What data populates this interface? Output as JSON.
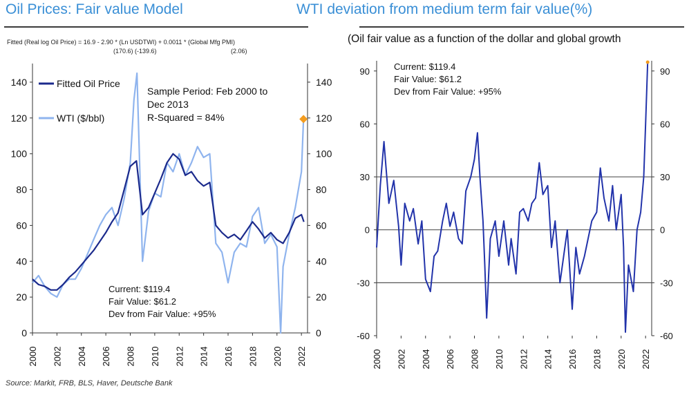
{
  "header": {
    "left_title": "Oil Prices: Fair value Model",
    "right_title": "WTI deviation from medium term fair value(%)"
  },
  "equation": {
    "line": "Fitted (Real log Oil Price) = 16.9 - 2.90 * (Ln USDTWI) + 0.0011 * (Global Mfg PMI)",
    "tstats_1": "(170.6) (-139.6)",
    "tstats_2": "(2.06)"
  },
  "right_subtitle": "(Oil fair value as a function of the dollar and global growth",
  "source": "Source: Markit, FRB, BLS, Haver, Deutsche Bank",
  "colors": {
    "fitted": "#1b2a8c",
    "wti": "#8fb4ee",
    "deviation": "#2233aa",
    "marker": "#f39c1f",
    "title": "#3a8fd6"
  },
  "chart_data": [
    {
      "type": "line",
      "x_range": [
        2000,
        2022.5
      ],
      "ylim": [
        0,
        150
      ],
      "yticks": [
        0,
        20,
        40,
        60,
        80,
        100,
        120,
        140
      ],
      "xticks": [
        "2000",
        "2002",
        "2004",
        "2006",
        "2008",
        "2010",
        "2012",
        "2014",
        "2016",
        "2018",
        "2020",
        "2022"
      ],
      "grid": false,
      "legend": [
        "Fitted Oil Price",
        "WTI ($/bbl)"
      ],
      "legend_position": "top-left",
      "annotations": {
        "sample": [
          "Sample Period: Feb 2000 to",
          "Dec 2013",
          "R-Squared = 84%"
        ],
        "stats": [
          "Current: $119.4",
          "Fair Value: $61.2",
          "Dev from Fair Value: +95%"
        ]
      },
      "highlight_point": {
        "x": 2022.17,
        "y": 119.4
      },
      "series": [
        {
          "name": "Fitted Oil Price",
          "x": [
            2000,
            2000.5,
            2001,
            2001.5,
            2002,
            2002.5,
            2003,
            2003.5,
            2004,
            2004.5,
            2005,
            2005.5,
            2006,
            2006.5,
            2007,
            2007.5,
            2008,
            2008.5,
            2009,
            2009.5,
            2010,
            2010.5,
            2011,
            2011.5,
            2012,
            2012.5,
            2013,
            2013.5,
            2014,
            2014.5,
            2015,
            2015.5,
            2016,
            2016.5,
            2017,
            2017.5,
            2018,
            2018.5,
            2019,
            2019.5,
            2020,
            2020.5,
            2021,
            2021.5,
            2022,
            2022.2
          ],
          "values": [
            30,
            27,
            26,
            24,
            24,
            27,
            31,
            34,
            38,
            42,
            46,
            51,
            56,
            62,
            67,
            80,
            93,
            96,
            66,
            70,
            78,
            86,
            95,
            100,
            97,
            88,
            90,
            85,
            82,
            84,
            60,
            56,
            53,
            55,
            52,
            57,
            62,
            58,
            53,
            56,
            52,
            50,
            56,
            64,
            66,
            62
          ]
        },
        {
          "name": "WTI ($/bbl)",
          "x": [
            2000,
            2000.5,
            2001,
            2001.5,
            2002,
            2002.5,
            2003,
            2003.5,
            2004,
            2004.5,
            2005,
            2005.5,
            2006,
            2006.5,
            2007,
            2007.5,
            2008,
            2008.3,
            2008.55,
            2009,
            2009.5,
            2010,
            2010.5,
            2011,
            2011.5,
            2012,
            2012.5,
            2013,
            2013.5,
            2014,
            2014.5,
            2015,
            2015.5,
            2016,
            2016.5,
            2017,
            2017.5,
            2018,
            2018.5,
            2019,
            2019.5,
            2020,
            2020.3,
            2020.5,
            2021,
            2021.5,
            2022,
            2022.17
          ],
          "values": [
            28,
            32,
            26,
            22,
            20,
            27,
            30,
            30,
            36,
            44,
            52,
            60,
            66,
            70,
            60,
            75,
            95,
            130,
            145,
            40,
            68,
            78,
            76,
            95,
            90,
            100,
            88,
            95,
            104,
            98,
            100,
            50,
            45,
            28,
            45,
            50,
            48,
            65,
            70,
            50,
            55,
            48,
            0,
            37,
            55,
            70,
            90,
            119.4
          ]
        }
      ]
    },
    {
      "type": "line",
      "x_range": [
        2000,
        2022.5
      ],
      "ylim": [
        -60,
        95
      ],
      "yticks": [
        -60,
        -30,
        0,
        30,
        60,
        90
      ],
      "reference_lines": [
        -30,
        0,
        30
      ],
      "xticks": [
        "2000",
        "2002",
        "2004",
        "2006",
        "2008",
        "2010",
        "2012",
        "2014",
        "2016",
        "2018",
        "2020",
        "2022"
      ],
      "grid": false,
      "annotations": [
        "Current: $119.4",
        "Fair Value: $61.2",
        "Dev from Fair Value: +95%"
      ],
      "highlight_point": {
        "x": 2022.17,
        "y": 95
      },
      "series": [
        {
          "x": [
            2000,
            2000.3,
            2000.6,
            2001,
            2001.4,
            2001.8,
            2002,
            2002.3,
            2002.7,
            2003,
            2003.4,
            2003.7,
            2004,
            2004.4,
            2004.7,
            2005,
            2005.4,
            2005.7,
            2006,
            2006.3,
            2006.7,
            2007,
            2007.3,
            2007.7,
            2008,
            2008.25,
            2008.45,
            2008.7,
            2008.85,
            2009,
            2009.3,
            2009.7,
            2010,
            2010.4,
            2010.8,
            2011,
            2011.4,
            2011.7,
            2012,
            2012.4,
            2012.7,
            2013,
            2013.3,
            2013.6,
            2014,
            2014.3,
            2014.6,
            2015,
            2015.3,
            2015.6,
            2016,
            2016.3,
            2016.6,
            2017,
            2017.3,
            2017.6,
            2018,
            2018.3,
            2018.6,
            2019,
            2019.3,
            2019.6,
            2020,
            2020.2,
            2020.35,
            2020.6,
            2021,
            2021.3,
            2021.6,
            2021.85,
            2022,
            2022.17
          ],
          "values": [
            -10,
            25,
            50,
            15,
            28,
            2,
            -20,
            15,
            5,
            12,
            -8,
            5,
            -28,
            -35,
            -15,
            -12,
            5,
            15,
            2,
            10,
            -5,
            -8,
            22,
            30,
            40,
            55,
            30,
            5,
            -20,
            -50,
            -5,
            5,
            -15,
            5,
            -20,
            -5,
            -25,
            10,
            12,
            5,
            15,
            18,
            38,
            20,
            25,
            -10,
            5,
            -30,
            -15,
            0,
            -45,
            -10,
            -25,
            -15,
            -5,
            5,
            10,
            35,
            18,
            5,
            25,
            0,
            20,
            -10,
            -58,
            -20,
            -35,
            0,
            10,
            30,
            60,
            95
          ]
        }
      ]
    }
  ]
}
